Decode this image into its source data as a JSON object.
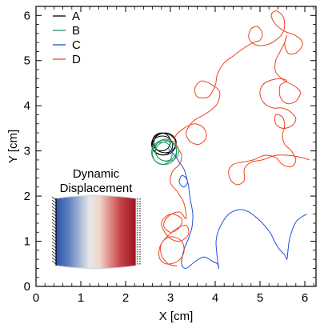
{
  "chart_data": {
    "type": "line",
    "xlabel": "X [cm]",
    "ylabel": "Y [cm]",
    "xlim": [
      0,
      6.25
    ],
    "ylim": [
      0,
      6.2
    ],
    "xticks": [
      "0",
      "1",
      "2",
      "3",
      "4",
      "5",
      "6"
    ],
    "yticks": [
      "0",
      "1",
      "2",
      "3",
      "4",
      "5",
      "6"
    ],
    "grid": false,
    "legend_position": "top-left",
    "series": [
      {
        "name": "A",
        "color": "#000000",
        "loops": [
          {
            "cx": 2.85,
            "cy": 3.15,
            "rx": 0.27,
            "ry": 0.24
          },
          {
            "cx": 2.82,
            "cy": 3.12,
            "rx": 0.23,
            "ry": 0.21
          },
          {
            "cx": 2.88,
            "cy": 3.18,
            "rx": 0.25,
            "ry": 0.22
          },
          {
            "cx": 2.8,
            "cy": 3.2,
            "rx": 0.2,
            "ry": 0.2
          }
        ],
        "points": []
      },
      {
        "name": "B",
        "color": "#1a9b5a",
        "loops": [
          {
            "cx": 2.86,
            "cy": 2.97,
            "rx": 0.28,
            "ry": 0.27
          },
          {
            "cx": 2.9,
            "cy": 3.02,
            "rx": 0.24,
            "ry": 0.24
          },
          {
            "cx": 2.82,
            "cy": 2.95,
            "rx": 0.22,
            "ry": 0.25
          },
          {
            "cx": 2.93,
            "cy": 2.99,
            "rx": 0.26,
            "ry": 0.22
          }
        ],
        "points": []
      },
      {
        "name": "C",
        "color": "#1f4fd8",
        "loops": [],
        "points": [
          [
            2.95,
            3.05
          ],
          [
            3.1,
            2.9
          ],
          [
            3.2,
            2.75
          ],
          [
            3.3,
            2.6
          ],
          [
            3.35,
            2.45
          ],
          [
            3.38,
            2.3
          ],
          [
            3.3,
            2.2
          ],
          [
            3.2,
            2.3
          ],
          [
            3.25,
            2.45
          ],
          [
            3.35,
            2.4
          ],
          [
            3.4,
            2.25
          ],
          [
            3.42,
            2.1
          ],
          [
            3.45,
            1.9
          ],
          [
            3.5,
            1.6
          ],
          [
            3.48,
            1.3
          ],
          [
            3.4,
            1.05
          ],
          [
            3.3,
            0.8
          ],
          [
            3.25,
            0.5
          ],
          [
            3.35,
            0.4
          ],
          [
            3.55,
            0.55
          ],
          [
            3.75,
            0.65
          ],
          [
            3.95,
            0.55
          ],
          [
            4.05,
            0.5
          ],
          [
            4.08,
            0.4
          ],
          [
            4.05,
            0.6
          ],
          [
            4.02,
            1.0
          ],
          [
            4.1,
            1.3
          ],
          [
            4.3,
            1.6
          ],
          [
            4.55,
            1.7
          ],
          [
            4.75,
            1.65
          ],
          [
            4.95,
            1.5
          ],
          [
            5.1,
            1.35
          ],
          [
            5.25,
            1.15
          ],
          [
            5.35,
            0.95
          ],
          [
            5.45,
            0.8
          ],
          [
            5.55,
            0.7
          ],
          [
            5.6,
            0.6
          ],
          [
            5.62,
            0.75
          ],
          [
            5.65,
            1.0
          ],
          [
            5.72,
            1.25
          ],
          [
            5.82,
            1.45
          ],
          [
            5.95,
            1.55
          ],
          [
            6.05,
            1.6
          ]
        ]
      },
      {
        "name": "D",
        "color": "#f0401e",
        "loops": [],
        "points": [
          [
            3.15,
            0.45
          ],
          [
            2.95,
            0.5
          ],
          [
            2.8,
            0.7
          ],
          [
            2.8,
            0.95
          ],
          [
            3.0,
            1.1
          ],
          [
            3.25,
            1.0
          ],
          [
            3.3,
            0.75
          ],
          [
            3.15,
            0.55
          ],
          [
            2.9,
            0.5
          ],
          [
            2.75,
            0.65
          ],
          [
            2.8,
            0.95
          ],
          [
            3.1,
            1.25
          ],
          [
            3.35,
            1.35
          ],
          [
            3.4,
            1.15
          ],
          [
            3.2,
            1.0
          ],
          [
            2.95,
            1.1
          ],
          [
            2.8,
            1.4
          ],
          [
            3.0,
            1.6
          ],
          [
            3.25,
            1.5
          ],
          [
            3.2,
            1.3
          ],
          [
            3.0,
            1.2
          ],
          [
            2.85,
            1.35
          ],
          [
            2.95,
            1.55
          ],
          [
            3.2,
            1.65
          ],
          [
            3.35,
            1.5
          ],
          [
            3.3,
            1.85
          ],
          [
            3.15,
            2.1
          ],
          [
            3.0,
            2.3
          ],
          [
            3.05,
            2.55
          ],
          [
            3.2,
            2.7
          ],
          [
            3.25,
            2.9
          ],
          [
            3.15,
            3.1
          ],
          [
            3.1,
            3.3
          ],
          [
            3.3,
            3.5
          ],
          [
            3.55,
            3.6
          ],
          [
            3.75,
            3.5
          ],
          [
            3.8,
            3.3
          ],
          [
            3.65,
            3.15
          ],
          [
            3.45,
            3.2
          ],
          [
            3.35,
            3.4
          ],
          [
            3.5,
            3.65
          ],
          [
            3.75,
            3.8
          ],
          [
            3.9,
            3.9
          ],
          [
            4.05,
            4.05
          ],
          [
            4.1,
            4.3
          ],
          [
            3.95,
            4.45
          ],
          [
            3.7,
            4.55
          ],
          [
            3.55,
            4.4
          ],
          [
            3.6,
            4.2
          ],
          [
            3.85,
            4.2
          ],
          [
            4.0,
            4.45
          ],
          [
            4.05,
            4.7
          ],
          [
            4.2,
            4.95
          ],
          [
            4.4,
            5.1
          ],
          [
            4.6,
            5.25
          ],
          [
            4.85,
            5.4
          ],
          [
            5.0,
            5.45
          ],
          [
            5.05,
            5.6
          ],
          [
            4.95,
            5.75
          ],
          [
            4.8,
            5.7
          ],
          [
            4.75,
            5.5
          ],
          [
            4.9,
            5.35
          ],
          [
            5.15,
            5.35
          ],
          [
            5.35,
            5.45
          ],
          [
            5.5,
            5.6
          ],
          [
            5.55,
            5.8
          ],
          [
            5.5,
            6.0
          ],
          [
            5.35,
            6.1
          ],
          [
            5.25,
            6.0
          ],
          [
            5.35,
            5.8
          ],
          [
            5.55,
            5.65
          ],
          [
            5.8,
            5.55
          ],
          [
            5.95,
            5.4
          ],
          [
            5.85,
            5.2
          ],
          [
            5.65,
            5.15
          ],
          [
            5.55,
            5.35
          ],
          [
            5.6,
            5.55
          ],
          [
            5.55,
            5.4
          ],
          [
            5.45,
            5.2
          ],
          [
            5.35,
            5.0
          ],
          [
            5.35,
            4.75
          ],
          [
            5.55,
            4.55
          ],
          [
            5.75,
            4.45
          ],
          [
            5.9,
            4.3
          ],
          [
            5.8,
            4.1
          ],
          [
            5.6,
            4.05
          ],
          [
            5.45,
            4.2
          ],
          [
            5.45,
            4.45
          ],
          [
            5.6,
            4.55
          ],
          [
            5.45,
            4.6
          ],
          [
            5.2,
            4.55
          ],
          [
            5.05,
            4.45
          ],
          [
            5.0,
            4.25
          ],
          [
            5.1,
            4.05
          ],
          [
            5.3,
            3.95
          ],
          [
            5.5,
            3.95
          ],
          [
            5.7,
            3.85
          ],
          [
            5.8,
            3.7
          ],
          [
            5.7,
            3.55
          ],
          [
            5.5,
            3.5
          ],
          [
            5.35,
            3.6
          ],
          [
            5.35,
            3.8
          ],
          [
            5.5,
            3.75
          ],
          [
            5.55,
            3.55
          ],
          [
            5.5,
            3.35
          ],
          [
            5.55,
            3.15
          ],
          [
            5.7,
            3.0
          ],
          [
            5.8,
            2.8
          ],
          [
            5.7,
            2.65
          ],
          [
            5.5,
            2.7
          ],
          [
            5.35,
            2.85
          ],
          [
            5.1,
            2.9
          ],
          [
            4.85,
            2.8
          ],
          [
            4.6,
            2.75
          ],
          [
            4.4,
            2.7
          ],
          [
            4.3,
            2.55
          ],
          [
            4.35,
            2.35
          ],
          [
            4.5,
            2.25
          ],
          [
            4.65,
            2.35
          ],
          [
            4.65,
            2.6
          ],
          [
            4.8,
            2.75
          ],
          [
            5.05,
            2.8
          ],
          [
            5.35,
            2.9
          ],
          [
            5.65,
            2.9
          ],
          [
            5.95,
            2.85
          ],
          [
            6.1,
            2.8
          ]
        ]
      }
    ]
  },
  "inset": {
    "title_line1": "Dynamic",
    "title_line2": "Displacement",
    "colors": {
      "left": "#2f52a8",
      "center": "#f2f2f2",
      "right": "#a0141e"
    }
  }
}
